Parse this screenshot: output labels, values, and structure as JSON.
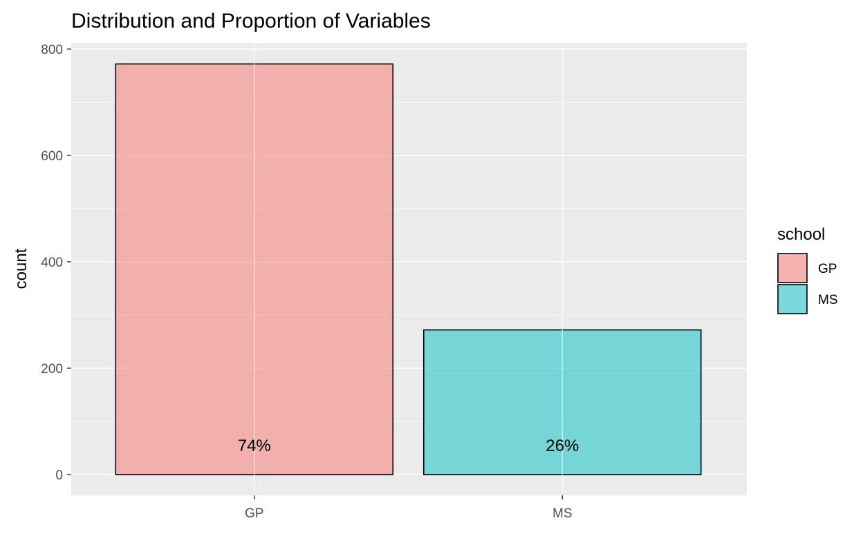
{
  "chart_data": {
    "type": "bar",
    "title": "Distribution and Proportion of Variables",
    "xlabel": "",
    "ylabel": "count",
    "categories": [
      "GP",
      "MS"
    ],
    "values": [
      772,
      272
    ],
    "labels": [
      "74%",
      "26%"
    ],
    "colors": [
      "#F8766D",
      "#00BFC4"
    ],
    "ylim": [
      0,
      800
    ],
    "yticks": [
      0,
      200,
      400,
      600,
      800
    ],
    "ytick_labels": [
      "0",
      "200",
      "400",
      "600",
      "800"
    ],
    "grid": true,
    "legend": {
      "title": "school",
      "position": "right",
      "entries": [
        "GP",
        "MS"
      ]
    }
  }
}
